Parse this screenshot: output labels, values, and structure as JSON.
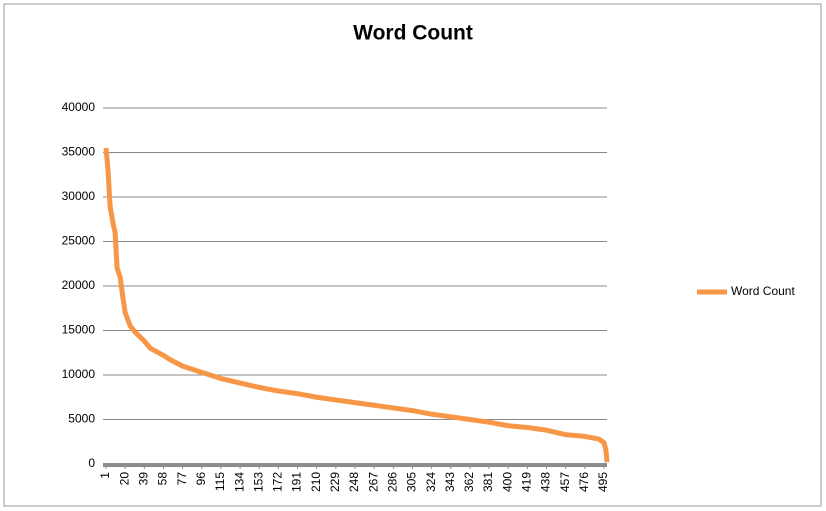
{
  "chart_data": {
    "type": "line",
    "title": "Word Count",
    "x": [
      1,
      3,
      5,
      8,
      10,
      12,
      15,
      18,
      20,
      25,
      30,
      39,
      45,
      58,
      65,
      77,
      96,
      115,
      134,
      153,
      172,
      191,
      210,
      229,
      248,
      267,
      286,
      305,
      324,
      343,
      362,
      381,
      400,
      419,
      438,
      457,
      476,
      490,
      495,
      497,
      498
    ],
    "series": [
      {
        "name": "Word Count",
        "color": "#f79646",
        "values": [
          35500,
          33000,
          29000,
          27000,
          26000,
          22000,
          21000,
          18500,
          17000,
          15500,
          14800,
          13800,
          13000,
          12200,
          11700,
          11000,
          10300,
          9600,
          9100,
          8600,
          8200,
          7900,
          7500,
          7200,
          6900,
          6600,
          6300,
          6000,
          5600,
          5300,
          5000,
          4700,
          4300,
          4100,
          3800,
          3300,
          3100,
          2800,
          2400,
          1500,
          200
        ]
      }
    ],
    "xlim": [
      -2,
      498
    ],
    "xticks": [
      1,
      20,
      39,
      58,
      77,
      96,
      115,
      134,
      153,
      172,
      191,
      210,
      229,
      248,
      267,
      286,
      305,
      324,
      343,
      362,
      381,
      400,
      419,
      438,
      457,
      476,
      495
    ],
    "ylim": [
      0,
      40000
    ],
    "yticks": [
      0,
      5000,
      10000,
      15000,
      20000,
      25000,
      30000,
      35000,
      40000
    ],
    "grid": true,
    "legend": "right"
  }
}
